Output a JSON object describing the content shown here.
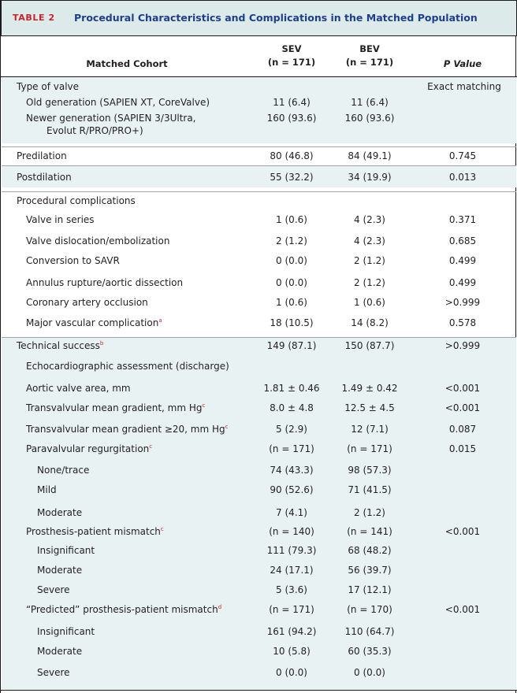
{
  "table": {
    "label": "TABLE 2",
    "title": "Procedural Characteristics and Complications in the Matched Population",
    "header": {
      "cohort": "Matched Cohort",
      "sev_name": "SEV",
      "sev_n": "(n = 171)",
      "bev_name": "BEV",
      "bev_n": "(n = 171)",
      "p_value": "P Value"
    },
    "rows": [
      {
        "label": "Type of valve",
        "sev": "",
        "bev": "",
        "p": "Exact matching"
      },
      {
        "label": "Old generation (SAPIEN XT, CoreValve)",
        "sev": "11 (6.4)",
        "bev": "11 (6.4)",
        "p": ""
      },
      {
        "label": "Newer generation (SAPIEN 3/3Ultra,",
        "label2": "Evolut R/PRO/PRO+)",
        "sev": "160 (93.6)",
        "bev": "160 (93.6)",
        "p": ""
      },
      {
        "label": "Predilation",
        "sev": "80 (46.8)",
        "bev": "84 (49.1)",
        "p": "0.745"
      },
      {
        "label": "Postdilation",
        "sev": "55 (32.2)",
        "bev": "34 (19.9)",
        "p": "0.013"
      },
      {
        "label": "Procedural complications",
        "sev": "",
        "bev": "",
        "p": ""
      },
      {
        "label": "Valve in series",
        "sev": "1 (0.6)",
        "bev": "4 (2.3)",
        "p": "0.371"
      },
      {
        "label": "Valve dislocation/embolization",
        "sev": "2 (1.2)",
        "bev": "4 (2.3)",
        "p": "0.685"
      },
      {
        "label": "Conversion to SAVR",
        "sev": "0 (0.0)",
        "bev": "2 (1.2)",
        "p": "0.499"
      },
      {
        "label": "Annulus rupture/aortic dissection",
        "sev": "0 (0.0)",
        "bev": "2 (1.2)",
        "p": "0.499"
      },
      {
        "label": "Coronary artery occlusion",
        "sev": "1 (0.6)",
        "bev": "1 (0.6)",
        "p": ">0.999"
      },
      {
        "label": "Major vascular complication",
        "sup": "a",
        "sev": "18 (10.5)",
        "bev": "14 (8.2)",
        "p": "0.578"
      },
      {
        "label": "Technical success",
        "sup": "b",
        "sev": "149 (87.1)",
        "bev": "150 (87.7)",
        "p": ">0.999"
      },
      {
        "label": "Echocardiographic assessment (discharge)",
        "sev": "",
        "bev": "",
        "p": ""
      },
      {
        "label": "Aortic valve area, mm",
        "sev": "1.81 ± 0.46",
        "bev": "1.49 ± 0.42",
        "p": "<0.001"
      },
      {
        "label": "Transvalvular mean gradient, mm Hg",
        "sup": "c",
        "sev": "8.0 ± 4.8",
        "bev": "12.5 ± 4.5",
        "p": "<0.001"
      },
      {
        "label": "Transvalvular mean gradient ≥20, mm Hg",
        "sup": "c",
        "sev": "5 (2.9)",
        "bev": "12 (7.1)",
        "p": "0.087"
      },
      {
        "label": "Paravalvular regurgitation",
        "sup": "c",
        "sev": "(n = 171)",
        "bev": "(n = 171)",
        "p": "0.015"
      },
      {
        "label": "None/trace",
        "sev": "74 (43.3)",
        "bev": "98 (57.3)",
        "p": ""
      },
      {
        "label": "Mild",
        "sev": "90 (52.6)",
        "bev": "71 (41.5)",
        "p": ""
      },
      {
        "label": "Moderate",
        "sev": "7 (4.1)",
        "bev": "2 (1.2)",
        "p": ""
      },
      {
        "label": "Prosthesis-patient mismatch",
        "sup": "c",
        "sev": "(n = 140)",
        "bev": "(n = 141)",
        "p": "<0.001"
      },
      {
        "label": "Insignificant",
        "sev": "111 (79.3)",
        "bev": "68 (48.2)",
        "p": ""
      },
      {
        "label": "Moderate",
        "sev": "24 (17.1)",
        "bev": "56 (39.7)",
        "p": ""
      },
      {
        "label": "Severe",
        "sev": "5 (3.6)",
        "bev": "17 (12.1)",
        "p": ""
      },
      {
        "label": "“Predicted” prosthesis-patient mismatch",
        "sup": "d",
        "sev": "(n = 171)",
        "bev": "(n = 170)",
        "p": "<0.001"
      },
      {
        "label": "Insignificant",
        "sev": "161 (94.2)",
        "bev": "110 (64.7)",
        "p": ""
      },
      {
        "label": "Moderate",
        "sev": "10 (5.8)",
        "bev": "60 (35.3)",
        "p": ""
      },
      {
        "label": "Severe",
        "sev": "0 (0.0)",
        "bev": "0 (0.0)",
        "p": ""
      }
    ]
  }
}
